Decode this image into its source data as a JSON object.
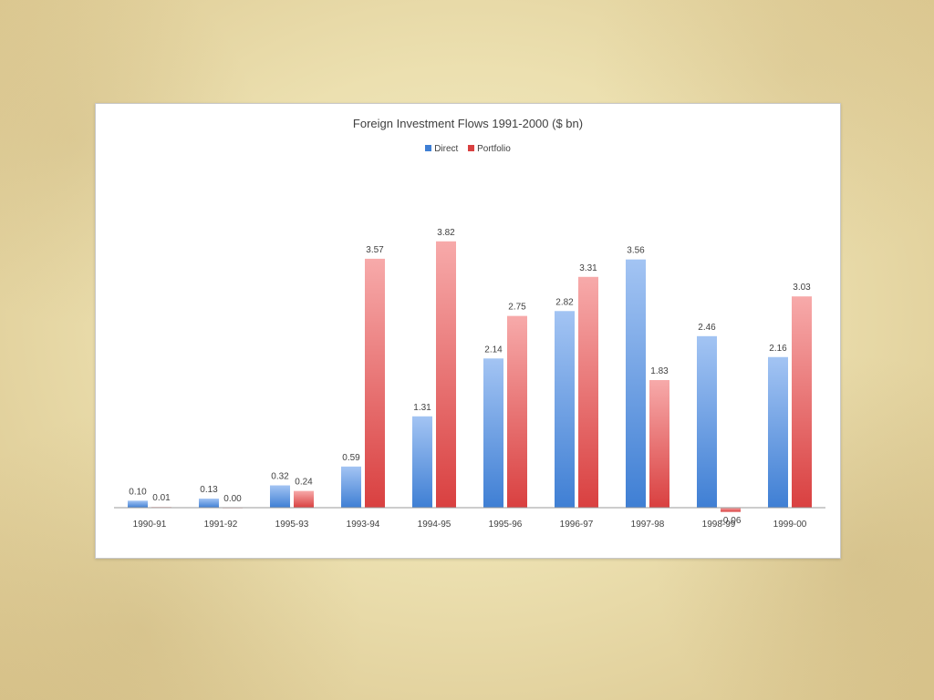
{
  "colors": {
    "direct_light": "#a3c4f3",
    "direct_dark": "#3f7fd4",
    "portfolio_light": "#f7aaaa",
    "portfolio_dark": "#d94040",
    "axis": "#9a9a9a"
  },
  "chart_data": {
    "type": "bar",
    "title": "Foreign Investment Flows 1991-2000 ($ bn)",
    "xlabel": "",
    "ylabel": "",
    "grid": false,
    "legend_position": "top",
    "ylim": [
      -0.25,
      4.3
    ],
    "categories": [
      "1990-91",
      "1991-92",
      "1995-93",
      "1993-94",
      "1994-95",
      "1995-96",
      "1996-97",
      "1997-98",
      "1998-99",
      "1999-00"
    ],
    "series": [
      {
        "name": "Direct",
        "values": [
          0.1,
          0.13,
          0.32,
          0.59,
          1.31,
          2.14,
          2.82,
          3.56,
          2.46,
          2.16
        ],
        "labels": [
          "0.10",
          "0.13",
          "0.32",
          "0.59",
          "1.31",
          "2.14",
          "2.82",
          "3.56",
          "2.46",
          "2.16"
        ]
      },
      {
        "name": "Portfolio",
        "values": [
          0.01,
          0.0,
          0.24,
          3.57,
          3.82,
          2.75,
          3.31,
          1.83,
          -0.06,
          3.03
        ],
        "labels": [
          "0.01",
          "0.00",
          "0.24",
          "3.57",
          "3.82",
          "2.75",
          "3.31",
          "1.83",
          "-0.06",
          "3.03"
        ]
      }
    ]
  }
}
